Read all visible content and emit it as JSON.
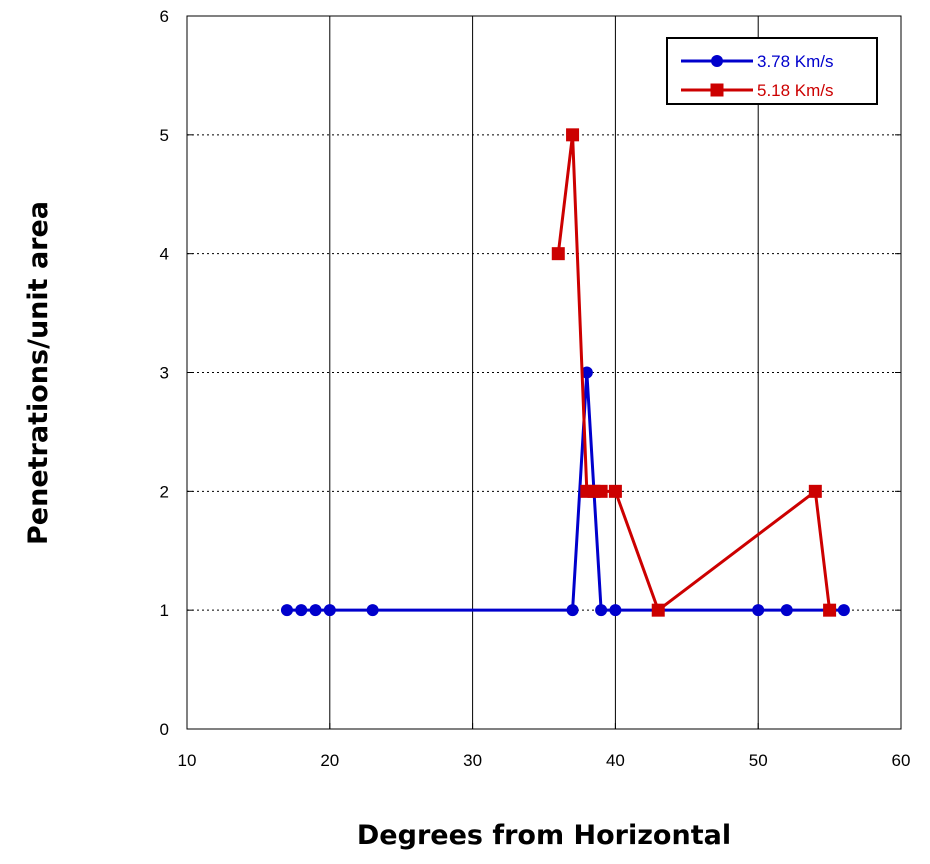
{
  "chart_data": {
    "type": "line",
    "xlabel": "Degrees from Horizontal",
    "ylabel": "Penetrations/unit area",
    "xlim": [
      10,
      60
    ],
    "ylim": [
      0,
      6
    ],
    "xticks": [
      10,
      20,
      30,
      40,
      50,
      60
    ],
    "yticks": [
      0,
      1,
      2,
      3,
      4,
      5,
      6
    ],
    "grid": {
      "x": "solid",
      "y": "dotted"
    },
    "legend_position": "top-right",
    "series": [
      {
        "name": "3.78 Km/s",
        "color": "#0000cc",
        "marker": "circle",
        "x": [
          17,
          18,
          19,
          20,
          23,
          37,
          38,
          39,
          40,
          50,
          52,
          56
        ],
        "y": [
          1,
          1,
          1,
          1,
          1,
          1,
          3,
          1,
          1,
          1,
          1,
          1
        ]
      },
      {
        "name": "5.18 Km/s",
        "color": "#cc0000",
        "marker": "square",
        "x": [
          36,
          37,
          38,
          38.5,
          39,
          40,
          43,
          54,
          55
        ],
        "y": [
          4,
          5,
          2,
          2,
          2,
          2,
          1,
          2,
          1
        ]
      }
    ]
  }
}
